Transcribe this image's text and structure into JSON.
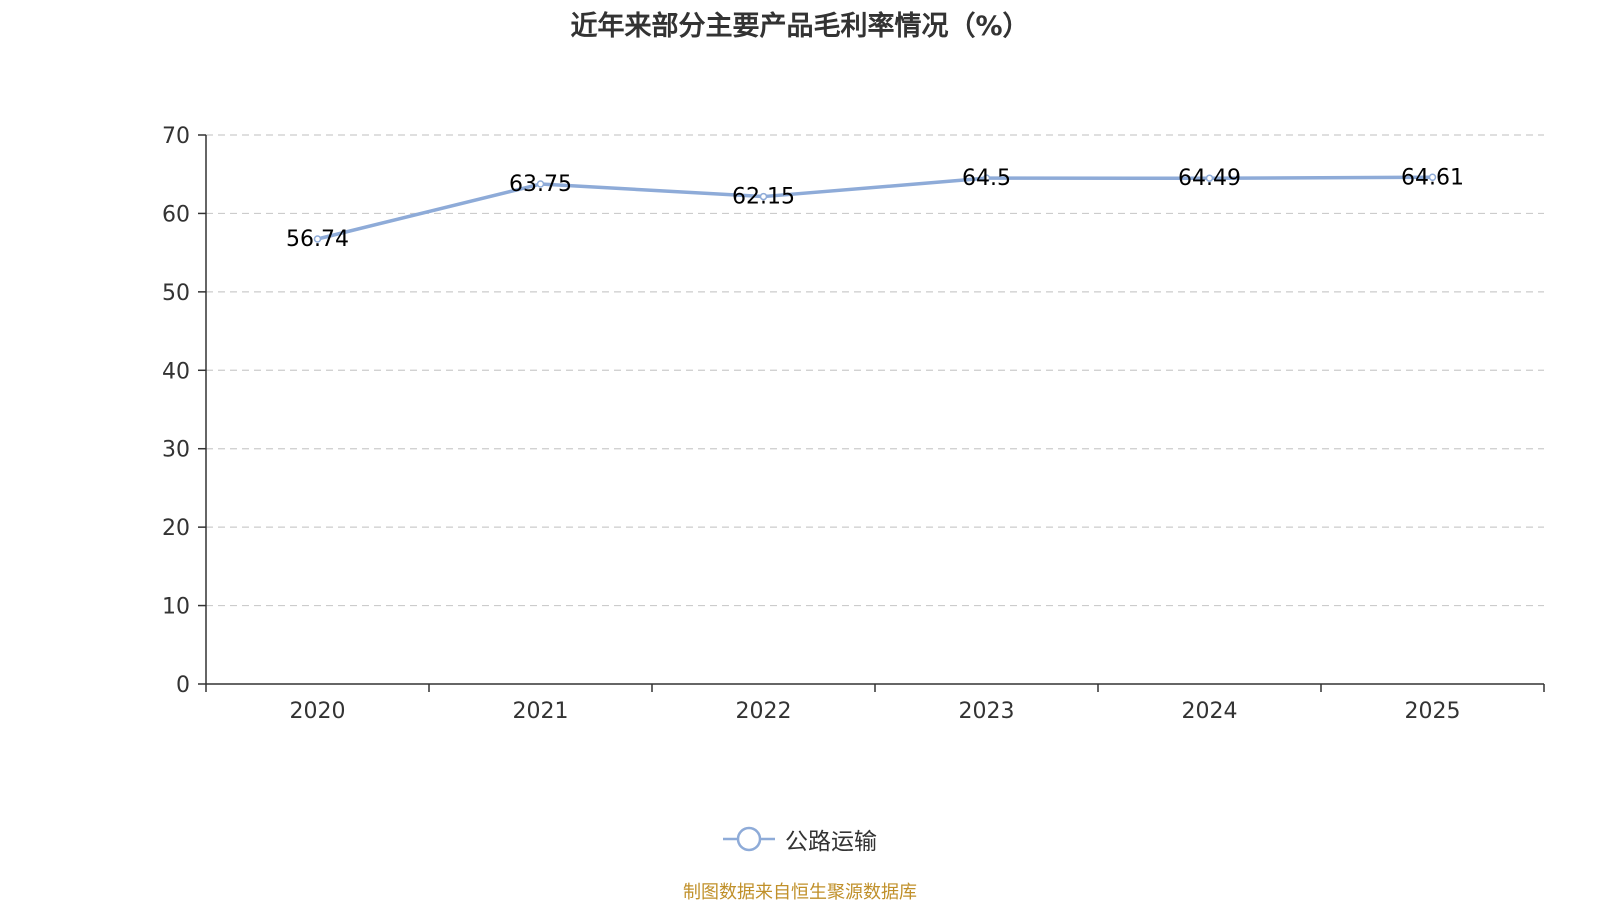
{
  "chart_data": {
    "type": "line",
    "title": "近年来部分主要产品毛利率情况（%）",
    "categories": [
      "2020",
      "2021",
      "2022",
      "2023",
      "2024",
      "2025"
    ],
    "series": [
      {
        "name": "公路运输",
        "values": [
          56.74,
          63.75,
          62.15,
          64.5,
          64.49,
          64.61
        ],
        "labels": [
          "56.74",
          "63.75",
          "62.15",
          "64.5",
          "64.49",
          "64.61"
        ],
        "color": "#8eabd8"
      }
    ],
    "ylim": [
      0,
      70
    ],
    "yticks": [
      "0",
      "10",
      "20",
      "30",
      "40",
      "50",
      "60",
      "70"
    ],
    "ytick_values": [
      0,
      10,
      20,
      30,
      40,
      50,
      60,
      70
    ],
    "xlabel": "",
    "ylabel": "",
    "grid": true,
    "legend_position": "bottom-center"
  },
  "footer": {
    "source": "制图数据来自恒生聚源数据库"
  }
}
